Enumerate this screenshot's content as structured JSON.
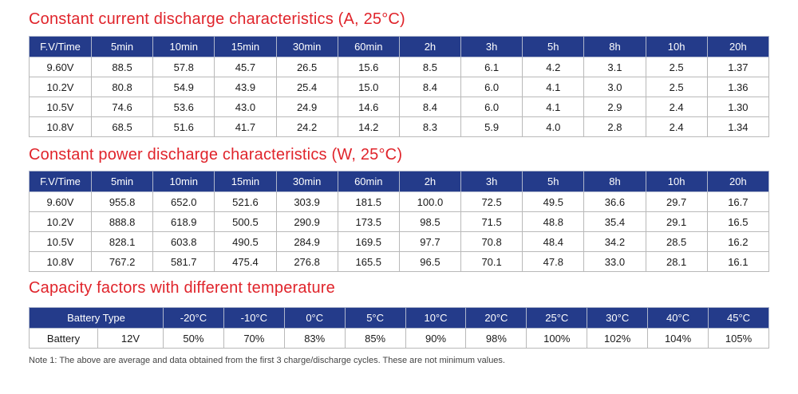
{
  "current_table": {
    "title": "Constant current discharge characteristics (A, 25°C)",
    "headers": [
      "F.V/Time",
      "5min",
      "10min",
      "15min",
      "30min",
      "60min",
      "2h",
      "3h",
      "5h",
      "8h",
      "10h",
      "20h"
    ],
    "rows": [
      [
        "9.60V",
        "88.5",
        "57.8",
        "45.7",
        "26.5",
        "15.6",
        "8.5",
        "6.1",
        "4.2",
        "3.1",
        "2.5",
        "1.37"
      ],
      [
        "10.2V",
        "80.8",
        "54.9",
        "43.9",
        "25.4",
        "15.0",
        "8.4",
        "6.0",
        "4.1",
        "3.0",
        "2.5",
        "1.36"
      ],
      [
        "10.5V",
        "74.6",
        "53.6",
        "43.0",
        "24.9",
        "14.6",
        "8.4",
        "6.0",
        "4.1",
        "2.9",
        "2.4",
        "1.30"
      ],
      [
        "10.8V",
        "68.5",
        "51.6",
        "41.7",
        "24.2",
        "14.2",
        "8.3",
        "5.9",
        "4.0",
        "2.8",
        "2.4",
        "1.34"
      ]
    ]
  },
  "power_table": {
    "title": "Constant power discharge characteristics (W, 25°C)",
    "headers": [
      "F.V/Time",
      "5min",
      "10min",
      "15min",
      "30min",
      "60min",
      "2h",
      "3h",
      "5h",
      "8h",
      "10h",
      "20h"
    ],
    "rows": [
      [
        "9.60V",
        "955.8",
        "652.0",
        "521.6",
        "303.9",
        "181.5",
        "100.0",
        "72.5",
        "49.5",
        "36.6",
        "29.7",
        "16.7"
      ],
      [
        "10.2V",
        "888.8",
        "618.9",
        "500.5",
        "290.9",
        "173.5",
        "98.5",
        "71.5",
        "48.8",
        "35.4",
        "29.1",
        "16.5"
      ],
      [
        "10.5V",
        "828.1",
        "603.8",
        "490.5",
        "284.9",
        "169.5",
        "97.7",
        "70.8",
        "48.4",
        "34.2",
        "28.5",
        "16.2"
      ],
      [
        "10.8V",
        "767.2",
        "581.7",
        "475.4",
        "276.8",
        "165.5",
        "96.5",
        "70.1",
        "47.8",
        "33.0",
        "28.1",
        "16.1"
      ]
    ]
  },
  "capacity_table": {
    "title": "Capacity factors with different temperature",
    "header_type": "Battery Type",
    "temps": [
      "-20°C",
      "-10°C",
      "0°C",
      "5°C",
      "10°C",
      "20°C",
      "25°C",
      "30°C",
      "40°C",
      "45°C"
    ],
    "row_label": "Battery",
    "row_voltage": "12V",
    "values": [
      "50%",
      "70%",
      "83%",
      "85%",
      "90%",
      "98%",
      "100%",
      "102%",
      "104%",
      "105%"
    ]
  },
  "note": "Note 1: The above are average and data obtained from the first 3 charge/discharge cycles. These are not minimum values.",
  "colors": {
    "header_bg": "#243b8a",
    "title_red": "#e0242b"
  }
}
